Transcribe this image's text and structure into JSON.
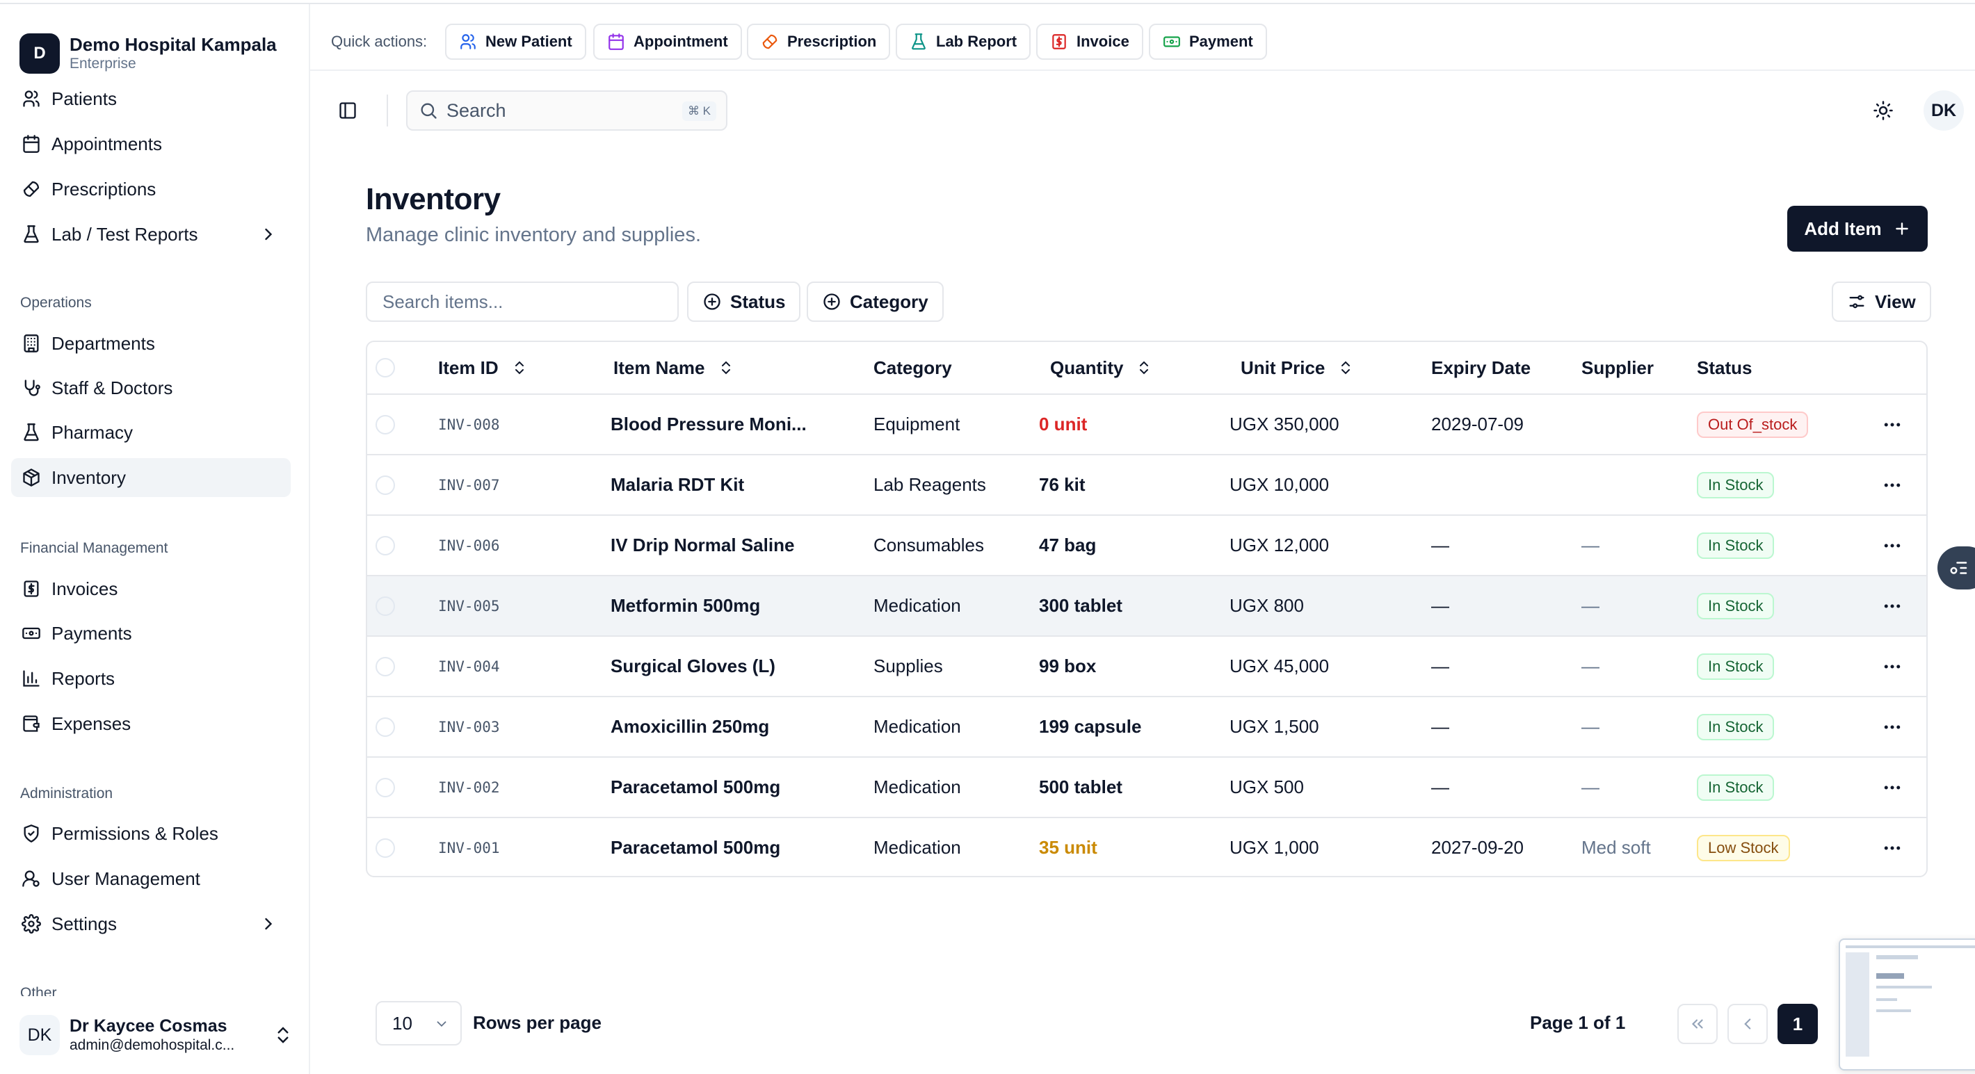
{
  "org": {
    "logo_letter": "D",
    "name": "Demo Hospital Kampala",
    "plan": "Enterprise"
  },
  "nav": {
    "top": [
      {
        "label": "Patients",
        "icon": "users-icon"
      },
      {
        "label": "Appointments",
        "icon": "calendar-icon"
      },
      {
        "label": "Prescriptions",
        "icon": "pill-icon"
      },
      {
        "label": "Lab / Test Reports",
        "icon": "flask-icon"
      }
    ],
    "operations_label": "Operations",
    "operations": [
      {
        "label": "Departments",
        "icon": "building-icon"
      },
      {
        "label": "Staff & Doctors",
        "icon": "stethoscope-icon"
      },
      {
        "label": "Pharmacy",
        "icon": "flask-icon"
      },
      {
        "label": "Inventory",
        "icon": "package-icon",
        "active": true
      }
    ],
    "financial_label": "Financial Management",
    "financial": [
      {
        "label": "Invoices",
        "icon": "receipt-icon"
      },
      {
        "label": "Payments",
        "icon": "banknote-icon"
      },
      {
        "label": "Reports",
        "icon": "bar-chart-icon"
      },
      {
        "label": "Expenses",
        "icon": "wallet-icon"
      }
    ],
    "admin_label": "Administration",
    "admin": [
      {
        "label": "Permissions & Roles",
        "icon": "shield-check-icon"
      },
      {
        "label": "User Management",
        "icon": "user-cog-icon"
      },
      {
        "label": "Settings",
        "icon": "gear-icon"
      }
    ],
    "other_label": "Other"
  },
  "user": {
    "initials": "DK",
    "name": "Dr Kaycee Cosmas",
    "email": "admin@demohospital.c..."
  },
  "quick_actions": {
    "label": "Quick actions:",
    "items": [
      {
        "label": "New Patient",
        "color": "#2563eb"
      },
      {
        "label": "Appointment",
        "color": "#9333ea"
      },
      {
        "label": "Prescription",
        "color": "#ea580c"
      },
      {
        "label": "Lab Report",
        "color": "#0d9488"
      },
      {
        "label": "Invoice",
        "color": "#dc2626"
      },
      {
        "label": "Payment",
        "color": "#16a34a"
      }
    ]
  },
  "header": {
    "search_placeholder": "Search",
    "shortcut": "⌘ K",
    "avatar": "DK"
  },
  "page": {
    "title": "Inventory",
    "subtitle": "Manage clinic inventory and supplies.",
    "add_button": "Add Item"
  },
  "filters": {
    "search_placeholder": "Search items...",
    "status": "Status",
    "category": "Category",
    "view": "View"
  },
  "table": {
    "columns": [
      "Item ID",
      "Item Name",
      "Category",
      "Quantity",
      "Unit Price",
      "Expiry Date",
      "Supplier",
      "Status"
    ],
    "rows": [
      {
        "id": "INV-008",
        "name": "Blood Pressure Moni...",
        "category": "Equipment",
        "quantity": "0 unit",
        "qty_state": "out",
        "price": "UGX 350,000",
        "expiry": "2029-07-09",
        "supplier": "",
        "status": "Out Of_stock",
        "status_kind": "out"
      },
      {
        "id": "INV-007",
        "name": "Malaria RDT Kit",
        "category": "Lab Reagents",
        "quantity": "76 kit",
        "qty_state": "normal",
        "price": "UGX 10,000",
        "expiry": "",
        "supplier": "",
        "status": "In Stock",
        "status_kind": "in"
      },
      {
        "id": "INV-006",
        "name": "IV Drip Normal Saline",
        "category": "Consumables",
        "quantity": "47 bag",
        "qty_state": "normal",
        "price": "UGX 12,000",
        "expiry": "—",
        "supplier": "—",
        "status": "In Stock",
        "status_kind": "in"
      },
      {
        "id": "INV-005",
        "name": "Metformin 500mg",
        "category": "Medication",
        "quantity": "300 tablet",
        "qty_state": "normal",
        "price": "UGX 800",
        "expiry": "—",
        "supplier": "—",
        "status": "In Stock",
        "status_kind": "in",
        "highlight": true
      },
      {
        "id": "INV-004",
        "name": "Surgical Gloves (L)",
        "category": "Supplies",
        "quantity": "99 box",
        "qty_state": "normal",
        "price": "UGX 45,000",
        "expiry": "—",
        "supplier": "—",
        "status": "In Stock",
        "status_kind": "in"
      },
      {
        "id": "INV-003",
        "name": "Amoxicillin 250mg",
        "category": "Medication",
        "quantity": "199 capsule",
        "qty_state": "normal",
        "price": "UGX 1,500",
        "expiry": "—",
        "supplier": "—",
        "status": "In Stock",
        "status_kind": "in"
      },
      {
        "id": "INV-002",
        "name": "Paracetamol 500mg",
        "category": "Medication",
        "quantity": "500 tablet",
        "qty_state": "normal",
        "price": "UGX 500",
        "expiry": "—",
        "supplier": "—",
        "status": "In Stock",
        "status_kind": "in"
      },
      {
        "id": "INV-001",
        "name": "Paracetamol 500mg",
        "category": "Medication",
        "quantity": "35 unit",
        "qty_state": "low",
        "price": "UGX 1,000",
        "expiry": "2027-09-20",
        "supplier": "Med soft",
        "status": "Low Stock",
        "status_kind": "low"
      }
    ]
  },
  "pagination": {
    "rows_per_page_value": "10",
    "rows_per_page_label": "Rows per page",
    "page_info": "Page 1 of 1",
    "current_page": "1"
  },
  "colors": {
    "primary": "#0f172a",
    "active_nav_bg": "#f1f4f7",
    "out_of_stock": "#dc2626",
    "low_stock": "#ca8a04",
    "in_stock": "#166534"
  }
}
